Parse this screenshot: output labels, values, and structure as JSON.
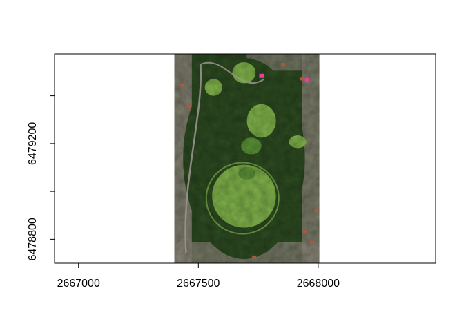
{
  "chart_data": {
    "type": "raster-map",
    "title": "",
    "xlabel": "",
    "ylabel": "",
    "xlim": [
      2666900,
      2668490
    ],
    "ylim": [
      6478700,
      6479575
    ],
    "x_ticks": [
      {
        "value": 2667000,
        "label": "2667000"
      },
      {
        "value": 2667500,
        "label": "2667500"
      },
      {
        "value": 2668000,
        "label": "2668000"
      }
    ],
    "y_ticks": [
      {
        "value": 6478800,
        "label": "6478800"
      },
      {
        "value": 6479000,
        "label": ""
      },
      {
        "value": 6479200,
        "label": "6479200"
      },
      {
        "value": 6479400,
        "label": ""
      }
    ],
    "raster_extent": {
      "xmin": 2667400,
      "xmax": 2668005,
      "ymin": 6478700,
      "ymax": 6479575
    },
    "raster_description": "aerial imagery",
    "colors": {
      "frame": "#000000",
      "grass_light": "#7fb04a",
      "grass_mid": "#5a8f36",
      "trees_dark": "#2d4a22",
      "urban": "#8a8478",
      "roofs_red": "#b5553c",
      "pink_marker": "#e6409a"
    }
  }
}
